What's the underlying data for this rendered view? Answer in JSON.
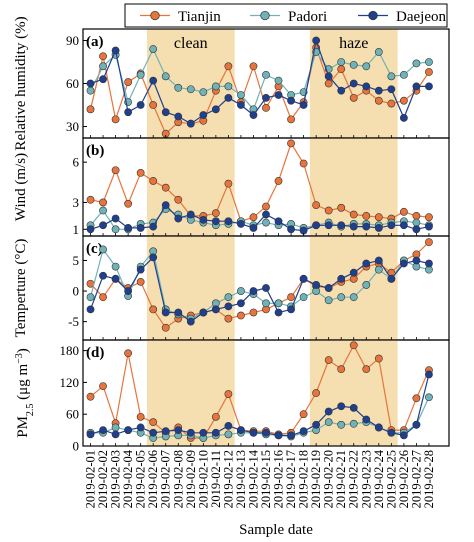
{
  "legend": {
    "position": "top",
    "items": [
      {
        "name": "Tianjin",
        "color": "#e8743b"
      },
      {
        "name": "Padori",
        "color": "#6fb3b8"
      },
      {
        "name": "Daejeon",
        "color": "#1f3f8f"
      }
    ]
  },
  "xlabel": "Sample date",
  "periods": [
    {
      "label": "clean",
      "start": "2019-02-06",
      "end": "2019-02-13",
      "color": "#f5deb0"
    },
    {
      "label": "haze",
      "start": "2019-02-19",
      "end": "2019-02-26",
      "color": "#f5deb0"
    }
  ],
  "chart_data": {
    "type": "line",
    "x": [
      "2019-02-01",
      "2019-02-02",
      "2019-02-03",
      "2019-02-04",
      "2019-02-05",
      "2019-02-06",
      "2019-02-07",
      "2019-02-08",
      "2019-02-09",
      "2019-02-10",
      "2019-02-11",
      "2019-02-12",
      "2019-02-13",
      "2019-02-14",
      "2019-02-15",
      "2019-02-16",
      "2019-02-17",
      "2019-02-18",
      "2019-02-19",
      "2019-02-20",
      "2019-02-21",
      "2019-02-22",
      "2019-02-23",
      "2019-02-24",
      "2019-02-25",
      "2019-02-26",
      "2019-02-27",
      "2019-02-28"
    ],
    "legend_position": "top",
    "panels": [
      {
        "panel_label": "(a)",
        "ylabel": "Relative humidity (%)",
        "ylim": [
          22,
          98
        ],
        "yticks": [
          30,
          60,
          90
        ],
        "series": [
          {
            "name": "Tianjin",
            "values": [
              42,
              79,
              35,
              61,
              67,
              45,
              25,
              33,
              32,
              34,
              55,
              72,
              47,
              72,
              43,
              58,
              35,
              47,
              85,
              60,
              70,
              50,
              55,
              48,
              46,
              48,
              55,
              68
            ]
          },
          {
            "name": "Padori",
            "values": [
              55,
              72,
              80,
              47,
              66,
              84,
              65,
              57,
              56,
              54,
              58,
              58,
              52,
              42,
              66,
              62,
              52,
              54,
              82,
              70,
              75,
              73,
              72,
              82,
              65,
              66,
              74,
              75
            ]
          },
          {
            "name": "Daejeon",
            "values": [
              60,
              63,
              83,
              40,
              45,
              62,
              40,
              37,
              32,
              38,
              42,
              50,
              45,
              38,
              50,
              52,
              48,
              45,
              90,
              65,
              55,
              60,
              58,
              55,
              56,
              36,
              58,
              58
            ]
          }
        ]
      },
      {
        "panel_label": "(b)",
        "ylabel": "Wind (m/s)",
        "ylim": [
          0.5,
          7.8
        ],
        "yticks": [
          1,
          3,
          6
        ],
        "series": [
          {
            "name": "Tianjin",
            "values": [
              3.2,
              3.0,
              5.4,
              2.9,
              5.2,
              4.6,
              4.1,
              3.2,
              2.0,
              2.0,
              2.2,
              4.4,
              1.6,
              1.9,
              2.7,
              4.6,
              7.4,
              5.9,
              2.8,
              2.4,
              2.6,
              2.1,
              2.0,
              1.9,
              1.8,
              2.3,
              2.0,
              1.9
            ]
          },
          {
            "name": "Padori",
            "values": [
              1.3,
              2.4,
              1.0,
              1.0,
              1.4,
              1.5,
              2.5,
              2.1,
              1.7,
              1.5,
              1.3,
              1.4,
              1.6,
              1.3,
              1.5,
              1.3,
              1.4,
              1.1,
              1.3,
              1.5,
              1.2,
              1.4,
              1.4,
              1.3,
              1.5,
              1.6,
              1.5,
              1.3
            ]
          },
          {
            "name": "Daejeon",
            "values": [
              1.0,
              1.3,
              1.8,
              1.1,
              1.1,
              1.2,
              2.8,
              1.8,
              2.1,
              1.7,
              1.6,
              1.6,
              1.4,
              1.1,
              2.1,
              1.6,
              1.0,
              0.9,
              1.3,
              1.3,
              1.3,
              1.2,
              1.2,
              1.1,
              1.3,
              1.3,
              1.0,
              1.2
            ]
          }
        ]
      },
      {
        "panel_label": "(c)",
        "ylabel": "Temperture (°C)",
        "ylim": [
          -8,
          9
        ],
        "yticks": [
          -5,
          0,
          5
        ],
        "series": [
          {
            "name": "Tianjin",
            "values": [
              1.2,
              -1.0,
              2.0,
              0.5,
              1.5,
              -3.0,
              -6.0,
              -4.5,
              -4.0,
              -3.5,
              -3.0,
              -4.5,
              -4.0,
              -3.5,
              -3.0,
              -2.0,
              -1.0,
              2.0,
              0.8,
              0.5,
              1.5,
              2.0,
              4.0,
              4.5,
              3.0,
              5.0,
              6.0,
              8.0
            ]
          },
          {
            "name": "Padori",
            "values": [
              -1.0,
              6.8,
              4.0,
              -0.8,
              4.0,
              6.5,
              -3.0,
              -3.8,
              -4.5,
              -3.5,
              -2.0,
              -1.0,
              0.0,
              -0.5,
              -2.0,
              -2.0,
              -2.5,
              -1.0,
              0.0,
              -1.5,
              -1.0,
              -1.0,
              1.0,
              3.5,
              2.0,
              5.0,
              4.0,
              3.5
            ]
          },
          {
            "name": "Daejeon",
            "values": [
              -3.0,
              2.5,
              2.0,
              0.0,
              3.5,
              5.5,
              -3.5,
              -3.5,
              -5.0,
              -3.5,
              -3.0,
              -2.5,
              -2.0,
              0.0,
              0.5,
              -3.5,
              -3.0,
              2.0,
              1.0,
              0.5,
              2.0,
              3.0,
              4.5,
              5.0,
              2.0,
              4.5,
              5.0,
              4.5
            ]
          }
        ]
      },
      {
        "panel_label": "(d)",
        "ylabel": "PM2.5 (μg m-3)",
        "ylabel_parts": {
          "base": "PM",
          "sub": "2.5",
          "unit_prefix": " (μg m",
          "sup": "−3",
          "unit_suffix": ")"
        },
        "ylim": [
          0,
          200
        ],
        "yticks": [
          0,
          60,
          120,
          180
        ],
        "series": [
          {
            "name": "Tianjin",
            "values": [
              93,
              113,
              43,
              175,
              55,
              45,
              25,
              35,
              15,
              15,
              55,
              98,
              30,
              28,
              28,
              22,
              25,
              60,
              100,
              162,
              145,
              190,
              145,
              165,
              30,
              30,
              90,
              143
            ]
          },
          {
            "name": "Padori",
            "values": [
              25,
              25,
              35,
              30,
              25,
              15,
              18,
              20,
              20,
              15,
              20,
              22,
              25,
              25,
              22,
              20,
              18,
              25,
              30,
              45,
              40,
              42,
              45,
              35,
              25,
              25,
              40,
              92
            ]
          },
          {
            "name": "Daejeon",
            "values": [
              22,
              30,
              22,
              30,
              35,
              25,
              28,
              30,
              25,
              25,
              25,
              38,
              30,
              25,
              25,
              20,
              20,
              28,
              40,
              65,
              75,
              72,
              50,
              35,
              25,
              20,
              40,
              135
            ]
          }
        ]
      }
    ]
  }
}
